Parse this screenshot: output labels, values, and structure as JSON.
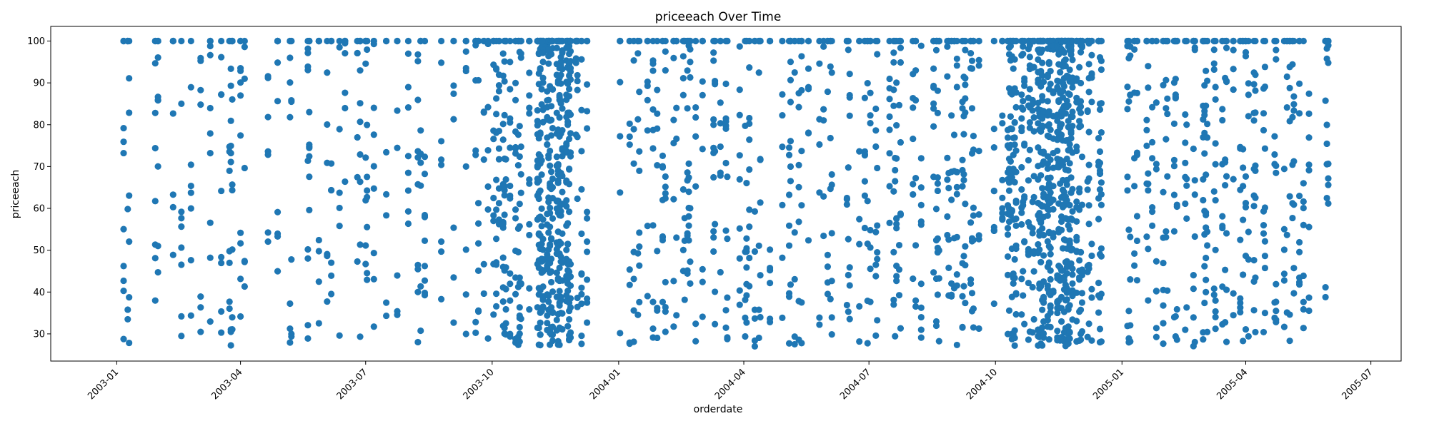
{
  "chart_data": {
    "type": "scatter",
    "title": "priceeach Over Time",
    "xlabel": "orderdate",
    "ylabel": "priceeach",
    "x_type": "date",
    "xlim": [
      "2002-11-14",
      "2005-07-23"
    ],
    "ylim": [
      23.5,
      103.5
    ],
    "x_ticks": [
      "2003-01",
      "2003-04",
      "2003-07",
      "2003-10",
      "2004-01",
      "2004-04",
      "2004-07",
      "2004-10",
      "2005-01",
      "2005-04",
      "2005-07"
    ],
    "y_ticks": [
      30,
      40,
      50,
      60,
      70,
      80,
      90,
      100
    ],
    "marker_color": "#1f77b4",
    "grid": false,
    "legend": "none",
    "order_dates": [
      "2003-01-06",
      "2003-01-09",
      "2003-01-10",
      "2003-01-29",
      "2003-01-31",
      "2003-02-11",
      "2003-02-17",
      "2003-02-24",
      "2003-03-03",
      "2003-03-10",
      "2003-03-18",
      "2003-03-24",
      "2003-03-25",
      "2003-03-26",
      "2003-04-01",
      "2003-04-04",
      "2003-04-21",
      "2003-04-28",
      "2003-05-07",
      "2003-05-08",
      "2003-05-20",
      "2003-05-21",
      "2003-05-28",
      "2003-06-03",
      "2003-06-06",
      "2003-06-12",
      "2003-06-16",
      "2003-06-25",
      "2003-06-27",
      "2003-07-01",
      "2003-07-02",
      "2003-07-07",
      "2003-07-16",
      "2003-07-24",
      "2003-08-01",
      "2003-08-08",
      "2003-08-10",
      "2003-08-13",
      "2003-08-25",
      "2003-09-03",
      "2003-09-12",
      "2003-09-19",
      "2003-09-21",
      "2003-09-25",
      "2003-09-28",
      "2003-10-02",
      "2003-10-04",
      "2003-10-06",
      "2003-10-09",
      "2003-10-10",
      "2003-10-11",
      "2003-10-14",
      "2003-10-18",
      "2003-10-20",
      "2003-10-21",
      "2003-10-22",
      "2003-10-28",
      "2003-11-03",
      "2003-11-04",
      "2003-11-05",
      "2003-11-06",
      "2003-11-07",
      "2003-11-10",
      "2003-11-11",
      "2003-11-12",
      "2003-11-13",
      "2003-11-14",
      "2003-11-17",
      "2003-11-18",
      "2003-11-19",
      "2003-11-20",
      "2003-11-21",
      "2003-11-24",
      "2003-11-25",
      "2003-11-26",
      "2003-11-27",
      "2003-12-01",
      "2003-12-02",
      "2003-12-05",
      "2003-12-09",
      "2004-01-02",
      "2004-01-09",
      "2004-01-12",
      "2004-01-15",
      "2004-01-16",
      "2004-01-22",
      "2004-01-26",
      "2004-01-29",
      "2004-02-02",
      "2004-02-04",
      "2004-02-10",
      "2004-02-12",
      "2004-02-17",
      "2004-02-18",
      "2004-02-20",
      "2004-02-21",
      "2004-02-22",
      "2004-02-26",
      "2004-03-02",
      "2004-03-10",
      "2004-03-11",
      "2004-03-15",
      "2004-03-19",
      "2004-03-20",
      "2004-03-29",
      "2004-04-02",
      "2004-04-03",
      "2004-04-05",
      "2004-04-09",
      "2004-04-12",
      "2004-04-13",
      "2004-04-20",
      "2004-04-29",
      "2004-05-04",
      "2004-05-05",
      "2004-05-08",
      "2004-05-11",
      "2004-05-13",
      "2004-05-18",
      "2004-05-26",
      "2004-05-29",
      "2004-06-01",
      "2004-06-03",
      "2004-06-04",
      "2004-06-15",
      "2004-06-16",
      "2004-06-17",
      "2004-06-24",
      "2004-06-28",
      "2004-06-30",
      "2004-07-02",
      "2004-07-06",
      "2004-07-07",
      "2004-07-16",
      "2004-07-19",
      "2004-07-20",
      "2004-07-21",
      "2004-07-23",
      "2004-07-24",
      "2004-08-02",
      "2004-08-04",
      "2004-08-08",
      "2004-08-17",
      "2004-08-19",
      "2004-08-20",
      "2004-08-21",
      "2004-08-27",
      "2004-08-28",
      "2004-08-30",
      "2004-09-01",
      "2004-09-03",
      "2004-09-07",
      "2004-09-08",
      "2004-09-09",
      "2004-09-13",
      "2004-09-14",
      "2004-09-15",
      "2004-09-19",
      "2004-09-30",
      "2004-10-06",
      "2004-10-10",
      "2004-10-11",
      "2004-10-12",
      "2004-10-13",
      "2004-10-14",
      "2004-10-15",
      "2004-10-16",
      "2004-10-20",
      "2004-10-21",
      "2004-10-22",
      "2004-10-25",
      "2004-10-26",
      "2004-10-28",
      "2004-10-29",
      "2004-11-01",
      "2004-11-02",
      "2004-11-03",
      "2004-11-04",
      "2004-11-05",
      "2004-11-08",
      "2004-11-09",
      "2004-11-10",
      "2004-11-12",
      "2004-11-15",
      "2004-11-16",
      "2004-11-17",
      "2004-11-18",
      "2004-11-19",
      "2004-11-20",
      "2004-11-21",
      "2004-11-22",
      "2004-11-23",
      "2004-11-24",
      "2004-11-25",
      "2004-11-26",
      "2004-11-29",
      "2004-12-01",
      "2004-12-02",
      "2004-12-03",
      "2004-12-07",
      "2004-12-08",
      "2004-12-10",
      "2004-12-15",
      "2004-12-16",
      "2004-12-17",
      "2005-01-05",
      "2005-01-06",
      "2005-01-07",
      "2005-01-10",
      "2005-01-12",
      "2005-01-19",
      "2005-01-20",
      "2005-01-23",
      "2005-01-26",
      "2005-01-31",
      "2005-02-02",
      "2005-02-03",
      "2005-02-08",
      "2005-02-09",
      "2005-02-10",
      "2005-02-16",
      "2005-02-17",
      "2005-02-22",
      "2005-02-23",
      "2005-03-01",
      "2005-03-02",
      "2005-03-03",
      "2005-03-04",
      "2005-03-09",
      "2005-03-10",
      "2005-03-15",
      "2005-03-17",
      "2005-03-18",
      "2005-03-23",
      "2005-03-28",
      "2005-03-30",
      "2005-04-01",
      "2005-04-03",
      "2005-04-07",
      "2005-04-08",
      "2005-04-14",
      "2005-04-15",
      "2005-04-22",
      "2005-04-23",
      "2005-04-29",
      "2005-05-01",
      "2005-05-03",
      "2005-05-05",
      "2005-05-06",
      "2005-05-10",
      "2005-05-13",
      "2005-05-17",
      "2005-05-29",
      "2005-05-30",
      "2005-05-31"
    ]
  }
}
